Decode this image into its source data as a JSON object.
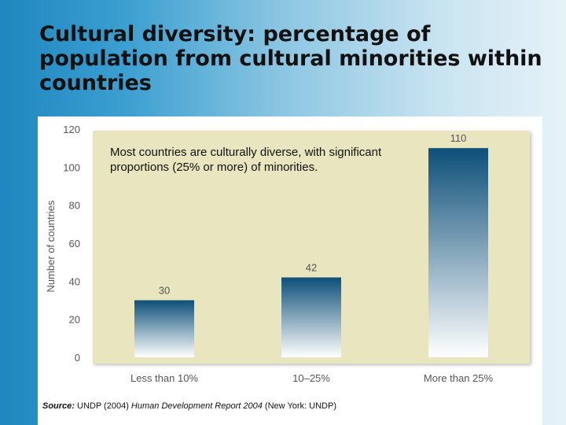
{
  "slide": {
    "title": "Cultural diversity: percentage of population from cultural minorities within countries"
  },
  "callout": {
    "text": "Most countries are culturally diverse, with significant proportions (25% or more) of minorities."
  },
  "source": {
    "label": "Source:",
    "text_a": "UNDP (2004)",
    "text_italic": "Human Development Report 2004",
    "text_b": "(New York: UNDP)"
  },
  "chart_data": {
    "type": "bar",
    "categories": [
      "Less than 10%",
      "10–25%",
      "More than 25%"
    ],
    "values": [
      30,
      42,
      110
    ],
    "value_labels": [
      "30",
      "42",
      "110"
    ],
    "ylabel": "Number of countries",
    "ylim": [
      0,
      120
    ],
    "yticks": [
      0,
      20,
      40,
      60,
      80,
      100,
      120
    ],
    "ytick_labels": [
      "0",
      "20",
      "40",
      "60",
      "80",
      "100",
      "120"
    ],
    "grid": false,
    "colors": {
      "plot_bg": "#e8e5bf",
      "bar_top": "#0d4f78",
      "bar_bottom": "#ffffff",
      "axis_text": "#555555"
    }
  }
}
